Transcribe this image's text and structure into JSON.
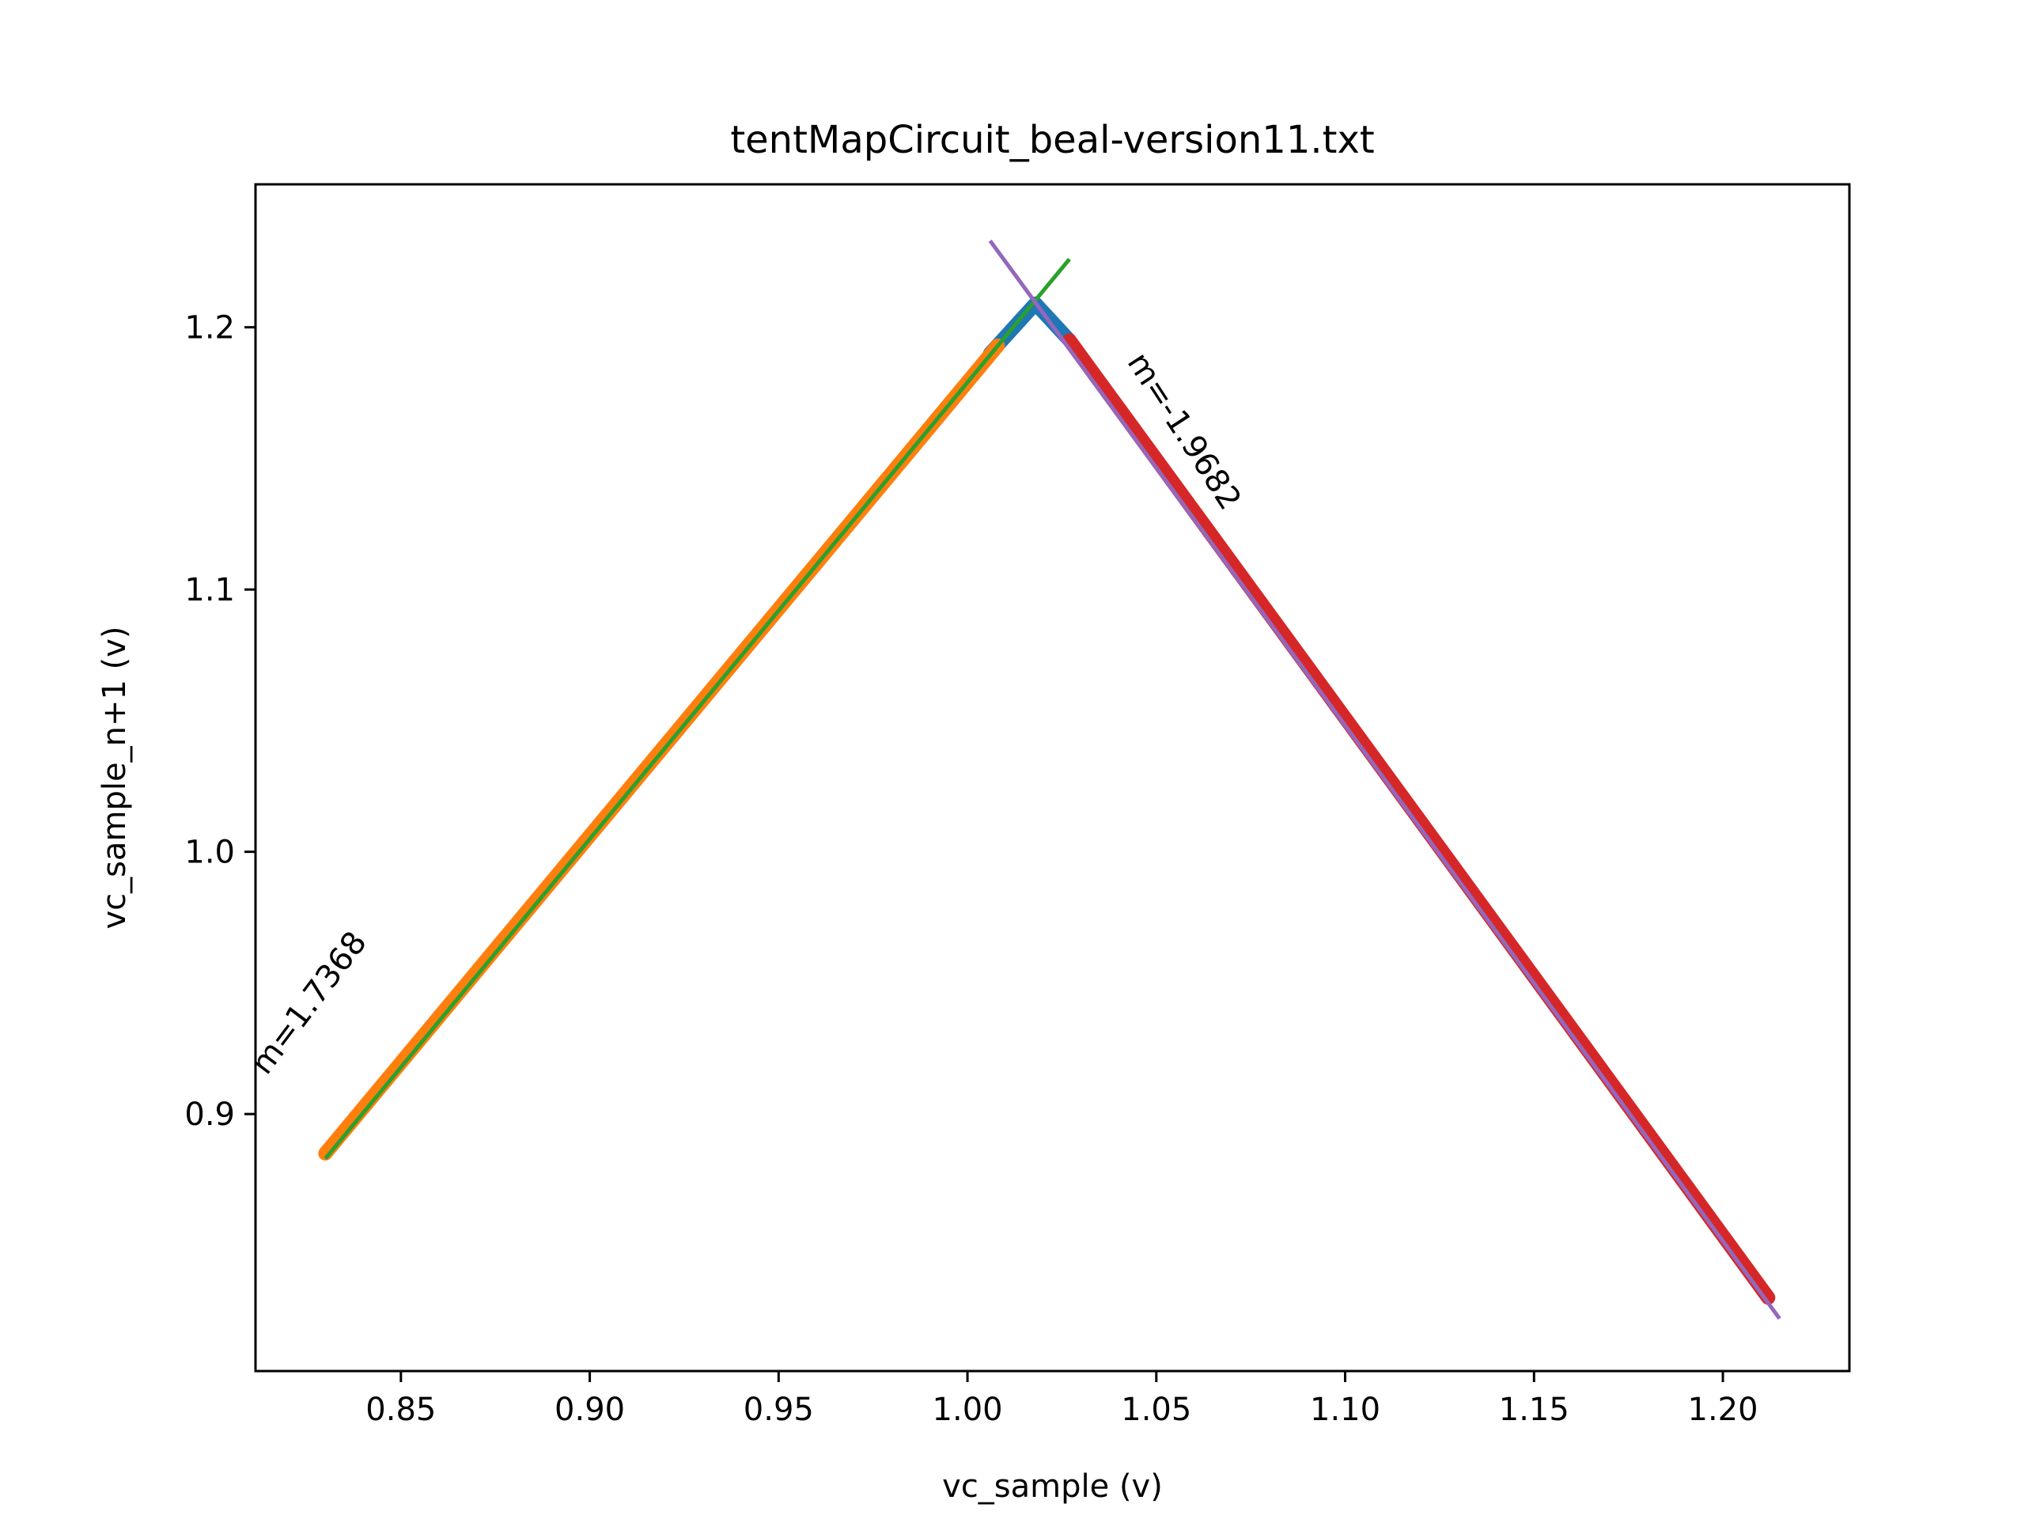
{
  "chart_data": {
    "type": "scatter",
    "title": "tentMapCircuit_beal-version11.txt",
    "xlabel": "vc_sample (v)",
    "ylabel": "vc_sample_n+1 (v)",
    "xlim": [
      0.8115,
      1.2335
    ],
    "ylim": [
      0.802,
      1.2545
    ],
    "xticks": [
      0.85,
      0.9,
      0.95,
      1.0,
      1.05,
      1.1,
      1.15,
      1.2
    ],
    "xtick_labels": [
      "0.85",
      "0.90",
      "0.95",
      "1.00",
      "1.05",
      "1.10",
      "1.15",
      "1.20"
    ],
    "yticks": [
      0.9,
      1.0,
      1.1,
      1.2
    ],
    "ytick_labels": [
      "0.9",
      "1.0",
      "1.1",
      "1.2"
    ],
    "grid": false,
    "series": [
      {
        "kind": "scatter-band",
        "color": "#1f77b4",
        "x": [
          1.006,
          1.018,
          1.027
        ],
        "y": [
          1.19,
          1.209,
          1.195
        ]
      },
      {
        "kind": "scatter-band",
        "color": "#ff7f0e",
        "x": [
          0.83,
          1.008
        ],
        "y": [
          0.885,
          1.193
        ]
      },
      {
        "kind": "scatter-band",
        "color": "#d62728",
        "x": [
          1.027,
          1.212
        ],
        "y": [
          1.195,
          0.83
        ]
      },
      {
        "kind": "fit-line",
        "color": "#2ca02c",
        "x": [
          0.83,
          1.027
        ],
        "y": [
          0.883,
          1.226
        ]
      },
      {
        "kind": "fit-line",
        "color": "#9467bd",
        "x": [
          1.006,
          1.215
        ],
        "y": [
          1.233,
          0.822
        ]
      }
    ],
    "annotations": [
      {
        "text": "m=1.7368",
        "x": 0.826,
        "y": 0.942,
        "rotation": -53
      },
      {
        "text": "m=-1.9682",
        "x": 1.057,
        "y": 1.16,
        "rotation": 57
      }
    ]
  }
}
